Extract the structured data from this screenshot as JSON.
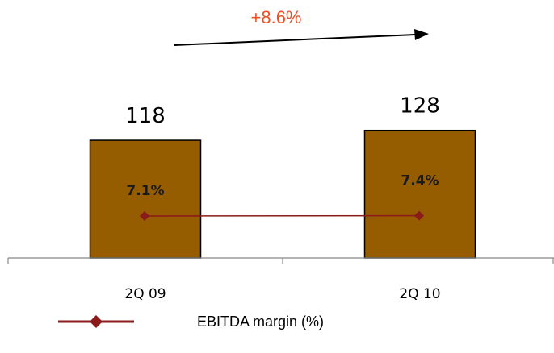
{
  "chart_data": {
    "type": "bar",
    "categories": [
      "2Q 09",
      "2Q 10"
    ],
    "series": [
      {
        "values": [
          118,
          128
        ],
        "value_labels": [
          "118",
          "128"
        ]
      },
      {
        "name": "EBITDA  margin (%)",
        "type": "line",
        "values": [
          7.1,
          7.4
        ],
        "value_labels": [
          "7.1%",
          "7.4%"
        ]
      }
    ],
    "annotation": {
      "text": "+8.6%"
    },
    "legend": {
      "placement": "bottom",
      "entries": [
        "EBITDA  margin (%)"
      ]
    },
    "grid": false
  },
  "colors": {
    "bar_fill": "#965C00",
    "bar_stroke": "#000000",
    "margin_line": "#8B1A1A",
    "growth_text": "#F04E23",
    "axis": "#888888",
    "arrow": "#000000"
  }
}
